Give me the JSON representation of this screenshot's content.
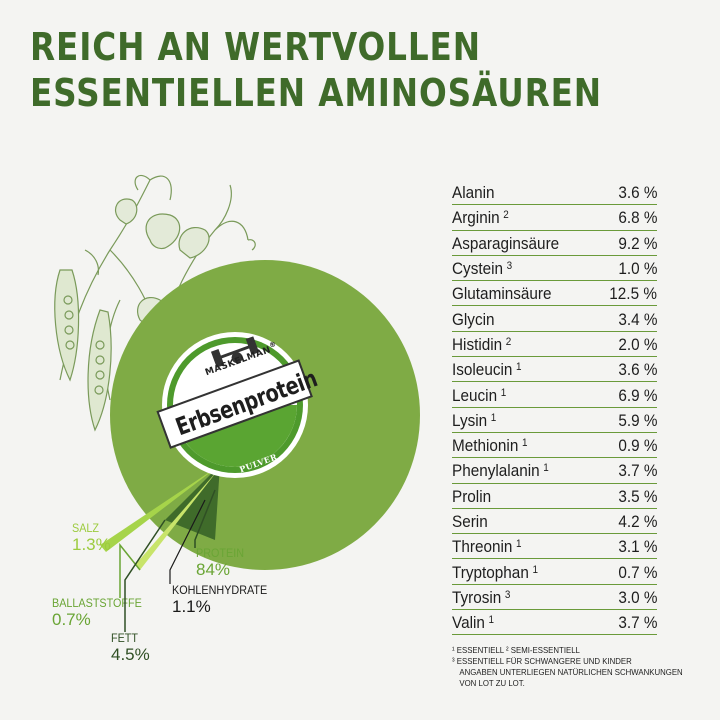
{
  "headline": {
    "line1": "REICH AN WERTVOLLEN",
    "line2": "ESSENTIELLEN AMINOSÄUREN"
  },
  "badge": {
    "brand": "MASKELMAN",
    "registered": "®",
    "product": "Erbsenprotein",
    "form": "PULVER"
  },
  "nutrients": [
    {
      "label": "SALZ",
      "value": "1.3%"
    },
    {
      "label": "BALLASTSTOFFE",
      "value": "0.7%"
    },
    {
      "label": "FETT",
      "value": "4.5%"
    },
    {
      "label": "PROTEIN",
      "value": "84%"
    },
    {
      "label": "KOHLENHYDRATE",
      "value": "1.1%"
    }
  ],
  "amino_acids": [
    {
      "name": "Alanin",
      "mark": "",
      "value": "3.6 %"
    },
    {
      "name": "Arginin",
      "mark": "2",
      "value": "6.8 %"
    },
    {
      "name": "Asparaginsäure",
      "mark": "",
      "value": "9.2 %"
    },
    {
      "name": "Cystein",
      "mark": "3",
      "value": "1.0 %"
    },
    {
      "name": "Glutaminsäure",
      "mark": "",
      "value": "12.5 %"
    },
    {
      "name": "Glycin",
      "mark": "",
      "value": "3.4 %"
    },
    {
      "name": "Histidin",
      "mark": "2",
      "value": "2.0 %"
    },
    {
      "name": "Isoleucin",
      "mark": "1",
      "value": "3.6 %"
    },
    {
      "name": "Leucin",
      "mark": "1",
      "value": "6.9 %"
    },
    {
      "name": "Lysin",
      "mark": "1",
      "value": "5.9 %"
    },
    {
      "name": "Methionin",
      "mark": "1",
      "value": "0.9 %"
    },
    {
      "name": "Phenylalanin",
      "mark": "1",
      "value": "3.7 %"
    },
    {
      "name": "Prolin",
      "mark": "",
      "value": "3.5 %"
    },
    {
      "name": "Serin",
      "mark": "",
      "value": "4.2 %"
    },
    {
      "name": "Threonin",
      "mark": "1",
      "value": "3.1 %"
    },
    {
      "name": "Tryptophan",
      "mark": "1",
      "value": "0.7 %"
    },
    {
      "name": "Tyrosin",
      "mark": "3",
      "value": "3.0 %"
    },
    {
      "name": "Valin",
      "mark": "1",
      "value": "3.7 %"
    }
  ],
  "footnotes": {
    "line1": "¹ ESSENTIELL   ² SEMI-ESSENTIELL",
    "line2": "³ ESSENTIELL FÜR SCHWANGERE UND KINDER",
    "line3": "ANGABEN UNTERLIEGEN NATÜRLICHEN SCHWANKUNGEN",
    "line4": "VON LOT ZU LOT."
  },
  "colors": {
    "headline": "#3f6b2a",
    "ring": "#7fab45",
    "badge_green": "#5aa532",
    "dark_green": "#2f4f24",
    "light_green": "#9ccb3e",
    "divider": "#6a9a3a"
  }
}
